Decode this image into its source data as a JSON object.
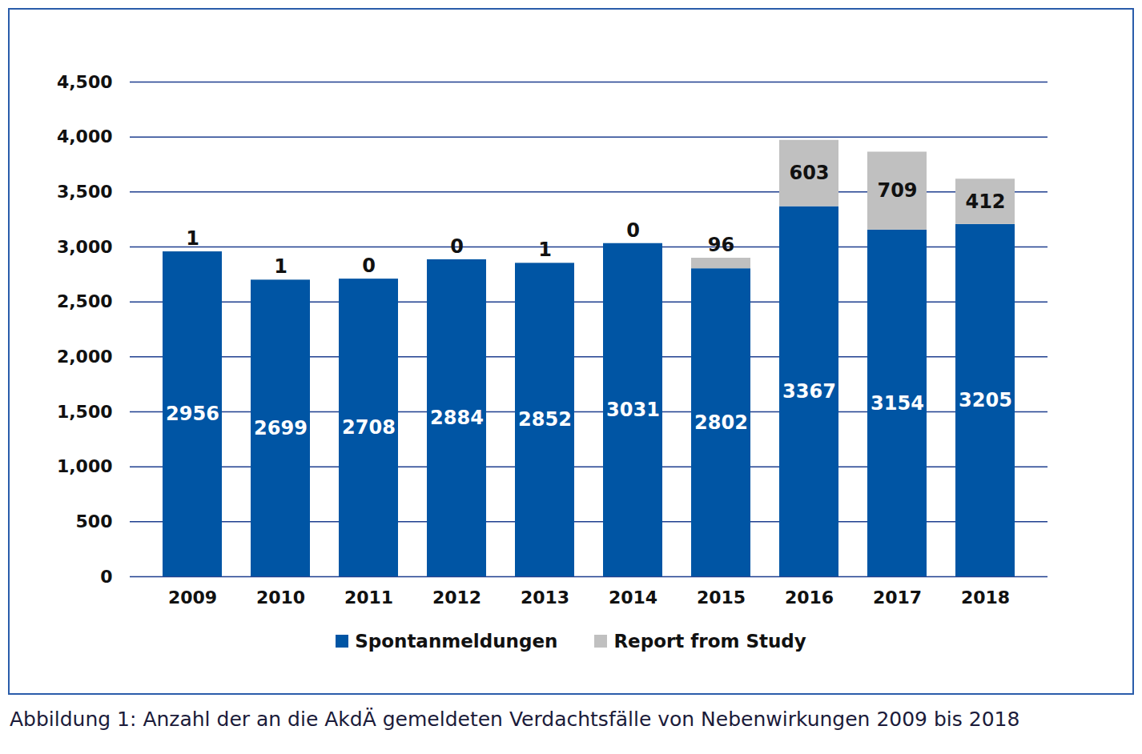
{
  "chart_data": {
    "type": "bar",
    "title": "Abbildung 1: Anzahl der an die AkdÄ gemeldeten Verdachtsfälle von Nebenwirkungen 2009 bis 2018",
    "categories": [
      "2009",
      "2010",
      "2011",
      "2012",
      "2013",
      "2014",
      "2015",
      "2016",
      "2017",
      "2018"
    ],
    "series": [
      {
        "name": "Spontanmeldungen",
        "color": "#0055a4",
        "values": [
          2956,
          2699,
          2708,
          2884,
          2852,
          3031,
          2802,
          3367,
          3154,
          3205
        ]
      },
      {
        "name": "Report from Study",
        "color": "#c0c0c0",
        "values": [
          1,
          1,
          0,
          0,
          1,
          0,
          96,
          603,
          709,
          412
        ]
      }
    ],
    "ylim": [
      0,
      4500
    ],
    "yticks": [
      0,
      500,
      1000,
      1500,
      2000,
      2500,
      3000,
      3500,
      4000,
      4500
    ],
    "grid": true,
    "stacked": true,
    "data_labels": true,
    "legend": "bottom"
  }
}
